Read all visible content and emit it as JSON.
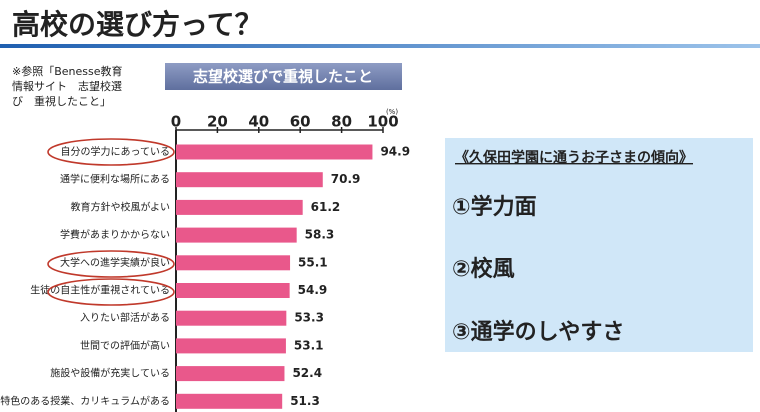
{
  "header": {
    "title": "高校の選び方って？"
  },
  "note": [
    "※参照「Benesse教育",
    "情報サイト　志望校選",
    "び　重視したこと」"
  ],
  "chart_data": {
    "type": "hbar",
    "title": "志望校選びで重視したこと",
    "x_label": "(%)",
    "categories": [
      "自分の学力にあっている",
      "通学に便利な場所にある",
      "教育方針や校風がよい",
      "学費があまりかからない",
      "大学への進学実績が良い",
      "生徒の自主性が重視されている",
      "入りたい部活がある",
      "世間での評価が高い",
      "施設や設備が充実している",
      "特色のある授業、カリキュラムがある"
    ],
    "values": [
      94.9,
      70.9,
      61.2,
      58.3,
      55.1,
      54.9,
      53.3,
      53.1,
      52.4,
      51.3
    ],
    "color": "#e9588b",
    "xlim": [
      0,
      100
    ],
    "xticks": [
      0,
      20,
      40,
      60,
      80,
      100
    ]
  },
  "side_box": {
    "title": "《久保田学園に通うお子さまの傾向》",
    "items": [
      "①学力面",
      "②校風",
      "③通学のしやすさ"
    ]
  }
}
